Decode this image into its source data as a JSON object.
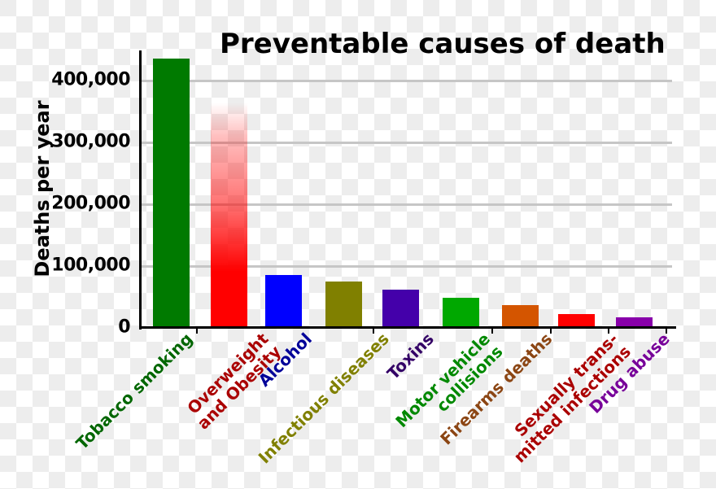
{
  "chart_data": {
    "type": "bar",
    "title": "Preventable causes of death",
    "xlabel": "",
    "ylabel": "Deaths per year",
    "ylim": [
      0,
      450000
    ],
    "yticks": [
      "0",
      "100,000",
      "200,000",
      "300,000",
      "400,000"
    ],
    "grid": true,
    "categories": [
      "Tobacco smoking",
      "Overweight and Obesity",
      "Alcohol",
      "Infectious diseases",
      "Toxins",
      "Motor vehicle collisions",
      "Firearms deaths",
      "Sexually transmitted infections",
      "Drug abuse"
    ],
    "values": [
      435000,
      365000,
      85000,
      75000,
      62000,
      49000,
      37000,
      22000,
      17000
    ],
    "colors": [
      "#007a00",
      "#ff0000",
      "#0000ff",
      "#808000",
      "#4400aa",
      "#00a800",
      "#d45500",
      "#ff0000",
      "#8800aa"
    ],
    "label_colors": [
      "#006600",
      "#aa0000",
      "#000099",
      "#808000",
      "#330066",
      "#008800",
      "#8b4513",
      "#aa0000",
      "#770099"
    ],
    "label_lines": [
      [
        "Tobacco smoking"
      ],
      [
        "Overweight",
        "and Obesity"
      ],
      [
        "Alcohol"
      ],
      [
        "Infectious diseases"
      ],
      [
        "Toxins"
      ],
      [
        "Motor vehicle",
        "collisions"
      ],
      [
        "Firearms deaths"
      ],
      [
        "Sexually trans-",
        "mitted infections"
      ],
      [
        "Drug abuse"
      ]
    ],
    "annotations": [
      "Overweight and Obesity bar fades out toward the top (uncertain estimate)"
    ]
  }
}
